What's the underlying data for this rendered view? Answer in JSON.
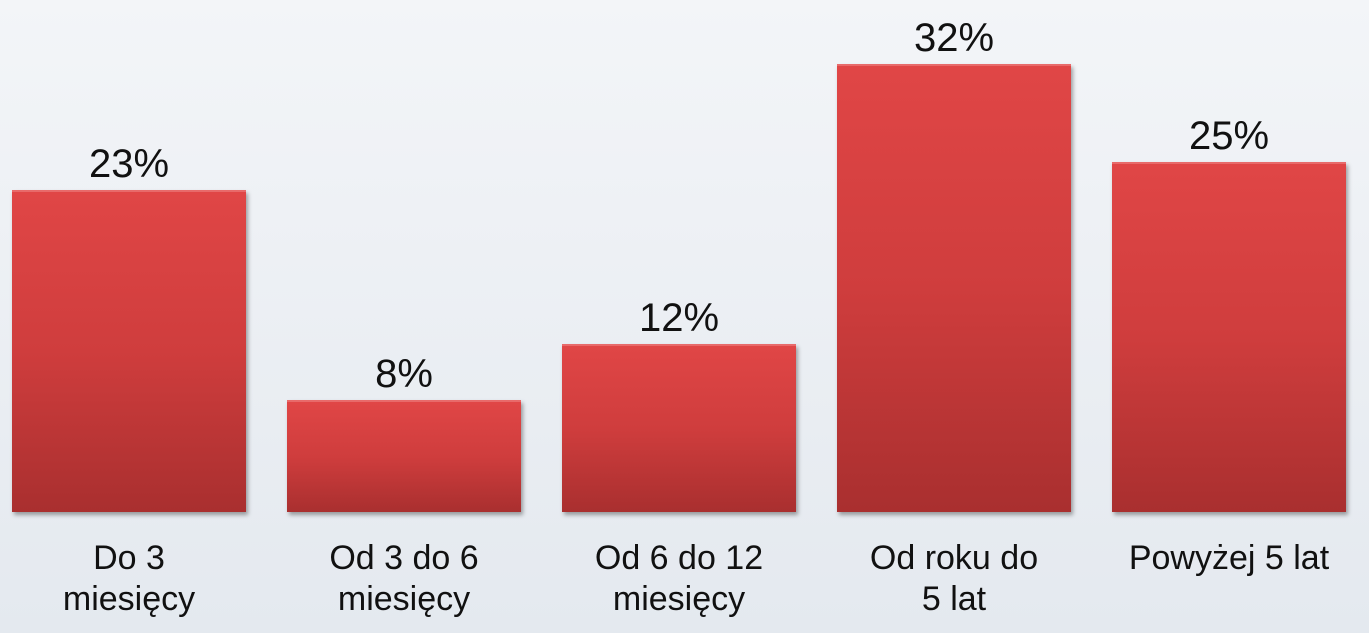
{
  "chart_data": {
    "type": "bar",
    "categories": [
      "Do 3 miesięcy",
      "Od 3 do 6 miesięcy",
      "Od 6 do 12 miesięcy",
      "Od roku do 5 lat",
      "Powyżej 5 lat"
    ],
    "values": [
      23,
      8,
      12,
      32,
      25
    ],
    "value_labels": [
      "23%",
      "8%",
      "12%",
      "32%",
      "25%"
    ],
    "color": "#cf3d3d"
  }
}
